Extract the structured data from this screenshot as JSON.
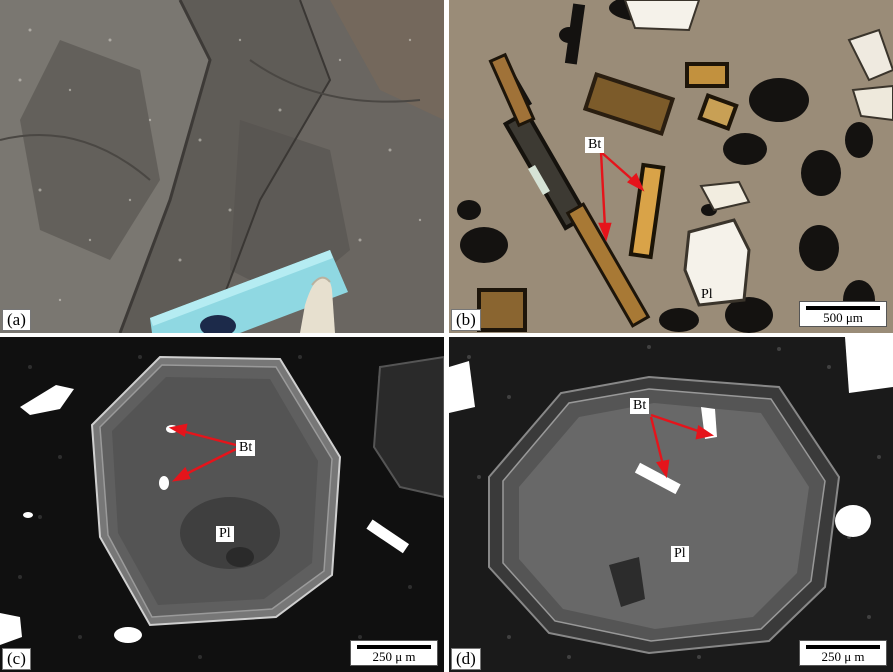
{
  "panels": {
    "a": {
      "label": "(a)"
    },
    "b": {
      "label": "(b)",
      "labels": {
        "bt": "Bt",
        "pl": "Pl"
      },
      "scale": "500 μm"
    },
    "c": {
      "label": "(c)",
      "labels": {
        "bt": "Bt",
        "pl": "Pl"
      },
      "scale": "250 μ m"
    },
    "d": {
      "label": "(d)",
      "labels": {
        "bt": "Bt",
        "pl": "Pl"
      },
      "scale": "250 μ m"
    }
  },
  "colors": {
    "arrow": "#e5141b",
    "outcrop": "#6f6c66",
    "scale_card": "#8fd8e2",
    "thin_section": "#9a8c78",
    "bse_background": "#101010"
  }
}
